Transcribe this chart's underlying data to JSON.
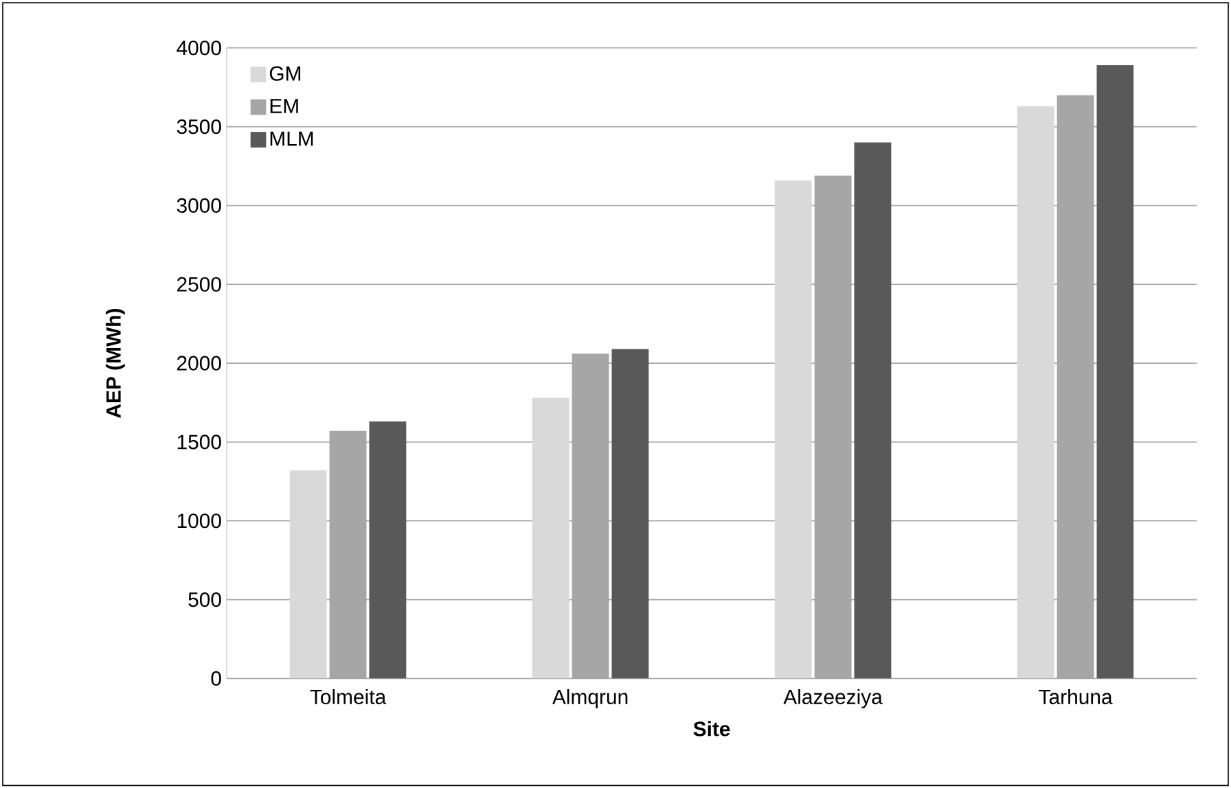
{
  "chart_data": {
    "type": "bar",
    "xlabel": "Site",
    "ylabel": "AEP (MWh)",
    "categories": [
      "Tolmeita",
      "Almqrun",
      "Alazeeziya",
      "Tarhuna"
    ],
    "series": [
      {
        "name": "GM",
        "color": "#d9d9d9",
        "values": [
          1320,
          1780,
          3160,
          3630
        ]
      },
      {
        "name": "EM",
        "color": "#a6a6a6",
        "values": [
          1570,
          2060,
          3190,
          3700
        ]
      },
      {
        "name": "MLM",
        "color": "#595959",
        "values": [
          1630,
          2090,
          3400,
          3890
        ]
      }
    ],
    "ylim": [
      0,
      4000
    ],
    "yticks": [
      0,
      500,
      1000,
      1500,
      2000,
      2500,
      3000,
      3500,
      4000
    ],
    "grid": "y",
    "legend": "top left"
  }
}
